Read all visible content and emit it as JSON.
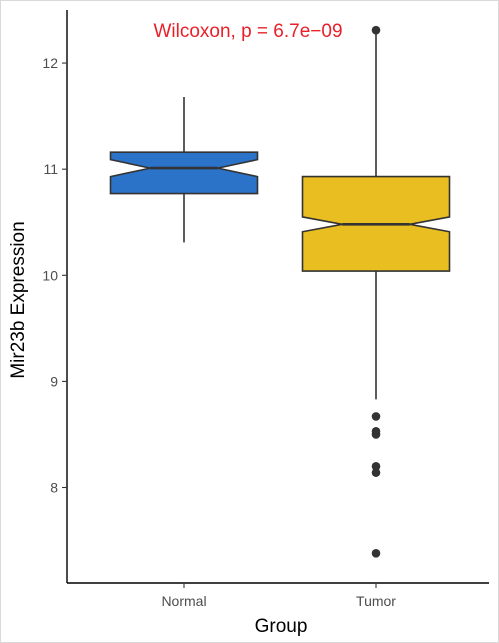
{
  "chart_data": {
    "type": "boxplot",
    "notched": true,
    "annotation": "Wilcoxon, p = 6.7e−09",
    "annotation_color": "#E8202A",
    "xlabel": "Group",
    "ylabel": "Mir23b Expression",
    "categories": [
      "Normal",
      "Tumor"
    ],
    "ylim": [
      7.1,
      12.5
    ],
    "yticks": [
      8,
      9,
      10,
      11,
      12
    ],
    "ytick_labels": [
      "8",
      "9",
      "10",
      "11",
      "12"
    ],
    "boxes": [
      {
        "category": "Normal",
        "color": "#2A73C8",
        "whisker_low": 10.31,
        "q1": 10.77,
        "median": 11.01,
        "q3": 11.16,
        "whisker_high": 11.68,
        "notch_low": 10.93,
        "notch_high": 11.09,
        "outliers": []
      },
      {
        "category": "Tumor",
        "color": "#E9BE20",
        "whisker_low": 8.83,
        "q1": 10.04,
        "median": 10.48,
        "q3": 10.93,
        "whisker_high": 12.29,
        "notch_low": 10.41,
        "notch_high": 10.55,
        "outliers": [
          12.31,
          8.67,
          8.53,
          8.5,
          8.2,
          8.14,
          7.38
        ]
      }
    ],
    "grid": false
  }
}
